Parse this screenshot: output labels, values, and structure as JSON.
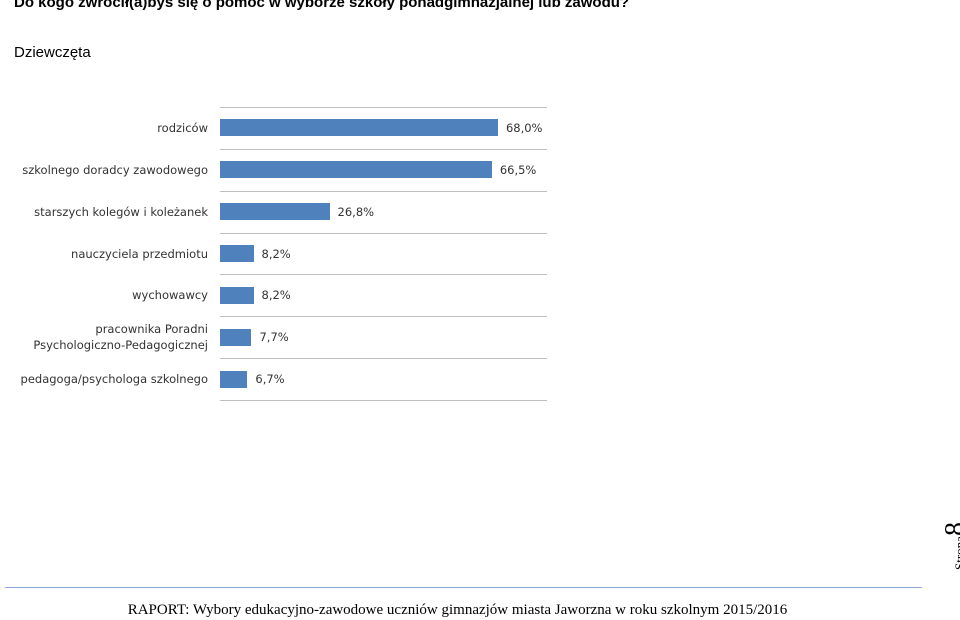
{
  "header": {
    "title": "Do kogo zwrócił(a)byś się o pomoc w wyborze szkoły ponadgimnazjalnej lub zawodu?",
    "subtitle": "Dziewczęta"
  },
  "chart_data": {
    "type": "bar",
    "orientation": "horizontal",
    "categories": [
      "rodziców",
      "szkolnego doradcy zawodowego",
      "starszych kolegów i koleżanek",
      "nauczyciela przedmiotu",
      "wychowawcy",
      "pracownika Poradni Psychologiczno-Pedagogicznej",
      "pedagoga/psychologa szkolnego"
    ],
    "values": [
      68.0,
      66.5,
      26.8,
      8.2,
      8.2,
      7.7,
      6.7
    ],
    "value_labels": [
      "68,0%",
      "66,5%",
      "26,8%",
      "8,2%",
      "8,2%",
      "7,7%",
      "6,7%"
    ],
    "color": "#4f81bd",
    "xlim": [
      0,
      80
    ]
  },
  "footer": {
    "text": "RAPORT: Wybory edukacyjno-zawodowe uczniów gimnazjów miasta Jaworzna w roku szkolnym 2015/2016"
  },
  "page": {
    "label": "Strona",
    "number": "8"
  }
}
